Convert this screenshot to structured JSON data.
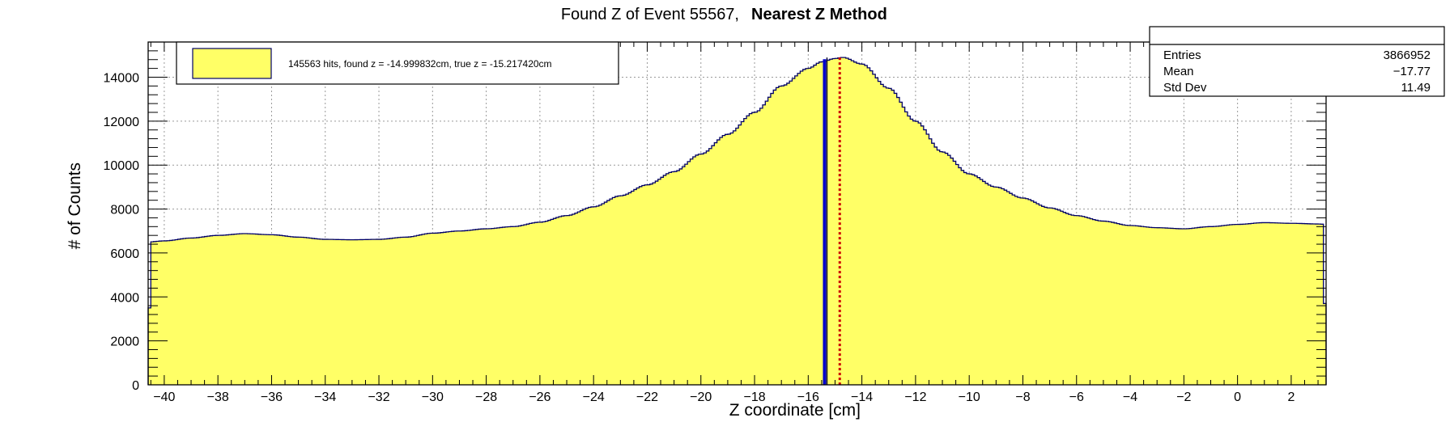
{
  "title": {
    "prefix": "Found Z of Event 55567,",
    "method": "Nearest Z Method"
  },
  "stats": {
    "rows": [
      {
        "label": "Entries",
        "value": "3866952"
      },
      {
        "label": "Mean",
        "value": "−17.77"
      },
      {
        "label": "Std Dev",
        "value": "11.49"
      }
    ]
  },
  "legend": {
    "entry": "145563 hits, found z = -14.999832cm, true z = -15.217420cm"
  },
  "colors": {
    "fill": "#ffff66",
    "outline": "#000066",
    "found_line": "#0000cc",
    "true_line": "#cc0000",
    "grid": "#9a9a9a"
  },
  "chart_data": {
    "type": "histogram",
    "xlabel": "Z coordinate [cm]",
    "ylabel": "# of Counts",
    "xlim": [
      -40.6,
      3.3
    ],
    "ylim": [
      0,
      15600
    ],
    "grid": true,
    "xticks": [
      -40,
      -38,
      -36,
      -34,
      -32,
      -30,
      -28,
      -26,
      -24,
      -22,
      -20,
      -18,
      -16,
      -14,
      -12,
      -10,
      -8,
      -6,
      -4,
      -2,
      0,
      2
    ],
    "yticks": [
      0,
      2000,
      4000,
      6000,
      8000,
      10000,
      12000,
      14000
    ],
    "profile": [
      [
        -40.6,
        6500
      ],
      [
        -40.0,
        6550
      ],
      [
        -39.0,
        6680
      ],
      [
        -38.0,
        6800
      ],
      [
        -37.0,
        6880
      ],
      [
        -36.0,
        6830
      ],
      [
        -35.0,
        6720
      ],
      [
        -34.0,
        6620
      ],
      [
        -33.0,
        6600
      ],
      [
        -32.0,
        6620
      ],
      [
        -31.0,
        6720
      ],
      [
        -30.0,
        6900
      ],
      [
        -29.0,
        7000
      ],
      [
        -28.0,
        7100
      ],
      [
        -27.0,
        7200
      ],
      [
        -26.0,
        7400
      ],
      [
        -25.0,
        7700
      ],
      [
        -24.0,
        8100
      ],
      [
        -23.0,
        8600
      ],
      [
        -22.0,
        9100
      ],
      [
        -21.0,
        9700
      ],
      [
        -20.0,
        10500
      ],
      [
        -19.0,
        11400
      ],
      [
        -18.0,
        12400
      ],
      [
        -17.0,
        13600
      ],
      [
        -16.0,
        14400
      ],
      [
        -15.5,
        14700
      ],
      [
        -15.0,
        14850
      ],
      [
        -14.7,
        14900
      ],
      [
        -14.0,
        14600
      ],
      [
        -13.0,
        13500
      ],
      [
        -12.0,
        12000
      ],
      [
        -11.0,
        10600
      ],
      [
        -10.0,
        9600
      ],
      [
        -9.0,
        9000
      ],
      [
        -8.0,
        8500
      ],
      [
        -7.0,
        8050
      ],
      [
        -6.0,
        7700
      ],
      [
        -5.0,
        7450
      ],
      [
        -4.0,
        7250
      ],
      [
        -3.0,
        7150
      ],
      [
        -2.0,
        7100
      ],
      [
        -1.0,
        7200
      ],
      [
        0.0,
        7300
      ],
      [
        1.0,
        7380
      ],
      [
        2.0,
        7350
      ],
      [
        3.0,
        7320
      ],
      [
        3.3,
        7300
      ]
    ],
    "edge_bins": {
      "first": 3500,
      "last": 3700
    },
    "bin_width": 0.1,
    "markers": [
      {
        "name": "found z",
        "x": -14.999832,
        "color": "#0000cc",
        "style": "solid"
      },
      {
        "name": "true z",
        "x": -15.21742,
        "color": "#cc0000",
        "style": "dotted"
      }
    ]
  }
}
